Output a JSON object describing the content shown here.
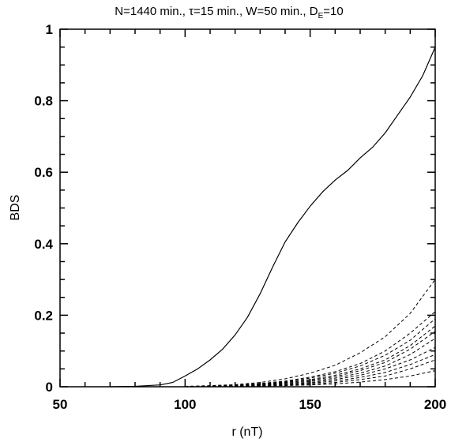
{
  "chart_data": {
    "type": "line",
    "title": "N=1440 min., τ=15 min., W=50 min., D",
    "title_subscript": "E",
    "title_suffix": "=10",
    "xlabel": "r (nT)",
    "ylabel": "BDS",
    "xlim": [
      50,
      200
    ],
    "ylim": [
      0,
      1
    ],
    "x_ticks": [
      50,
      100,
      150,
      200
    ],
    "x_tick_labels": [
      "50",
      "100",
      "150",
      "200"
    ],
    "y_ticks": [
      0,
      0.2,
      0.4,
      0.6,
      0.8,
      1
    ],
    "y_tick_labels": [
      "0",
      "0.2",
      "0.4",
      "0.6",
      "0.8",
      "1"
    ],
    "grid": false,
    "legend": "none",
    "series": [
      {
        "style": "solid",
        "x": [
          70,
          80,
          90,
          95,
          100,
          105,
          110,
          115,
          120,
          125,
          130,
          135,
          140,
          145,
          150,
          155,
          160,
          165,
          170,
          175,
          180,
          185,
          190,
          195,
          200
        ],
        "y": [
          0,
          0.001,
          0.005,
          0.012,
          0.03,
          0.05,
          0.075,
          0.105,
          0.145,
          0.195,
          0.26,
          0.335,
          0.405,
          0.458,
          0.505,
          0.545,
          0.578,
          0.605,
          0.64,
          0.67,
          0.71,
          0.76,
          0.81,
          0.87,
          0.95
        ]
      },
      {
        "style": "dashed",
        "x": [
          100,
          110,
          120,
          130,
          140,
          150,
          160,
          170,
          180,
          190,
          200
        ],
        "y": [
          0.001,
          0.003,
          0.006,
          0.012,
          0.022,
          0.038,
          0.06,
          0.095,
          0.14,
          0.205,
          0.3
        ]
      },
      {
        "style": "dashed",
        "x": [
          100,
          110,
          120,
          130,
          140,
          150,
          160,
          170,
          180,
          190,
          200
        ],
        "y": [
          0,
          0.002,
          0.004,
          0.009,
          0.016,
          0.027,
          0.042,
          0.065,
          0.1,
          0.15,
          0.21
        ]
      },
      {
        "style": "dashed",
        "x": [
          100,
          110,
          120,
          130,
          140,
          150,
          160,
          170,
          180,
          190,
          200
        ],
        "y": [
          0,
          0.002,
          0.004,
          0.008,
          0.014,
          0.024,
          0.038,
          0.058,
          0.088,
          0.13,
          0.19
        ]
      },
      {
        "style": "dashed",
        "x": [
          100,
          110,
          120,
          130,
          140,
          150,
          160,
          170,
          180,
          190,
          200
        ],
        "y": [
          0,
          0.001,
          0.003,
          0.007,
          0.012,
          0.02,
          0.032,
          0.05,
          0.075,
          0.115,
          0.17
        ]
      },
      {
        "style": "dashed",
        "x": [
          100,
          110,
          120,
          130,
          140,
          150,
          160,
          170,
          180,
          190,
          200
        ],
        "y": [
          0,
          0.001,
          0.003,
          0.006,
          0.011,
          0.018,
          0.028,
          0.045,
          0.068,
          0.105,
          0.155
        ]
      },
      {
        "style": "dashed",
        "x": [
          100,
          110,
          120,
          130,
          140,
          150,
          160,
          170,
          180,
          190,
          200
        ],
        "y": [
          0,
          0.001,
          0.002,
          0.005,
          0.009,
          0.015,
          0.024,
          0.038,
          0.058,
          0.09,
          0.135
        ]
      },
      {
        "style": "dashed",
        "x": [
          100,
          110,
          120,
          130,
          140,
          150,
          160,
          170,
          180,
          190,
          200
        ],
        "y": [
          0,
          0.001,
          0.002,
          0.004,
          0.007,
          0.012,
          0.02,
          0.032,
          0.05,
          0.075,
          0.11
        ]
      },
      {
        "style": "dashed",
        "x": [
          100,
          110,
          120,
          130,
          140,
          150,
          160,
          170,
          180,
          190,
          200
        ],
        "y": [
          0,
          0.001,
          0.002,
          0.003,
          0.006,
          0.01,
          0.016,
          0.026,
          0.04,
          0.062,
          0.09
        ]
      },
      {
        "style": "dashed",
        "x": [
          100,
          110,
          120,
          130,
          140,
          150,
          160,
          170,
          180,
          190,
          200
        ],
        "y": [
          0,
          0,
          0.001,
          0.002,
          0.004,
          0.007,
          0.012,
          0.02,
          0.03,
          0.05,
          0.075
        ]
      },
      {
        "style": "dashed",
        "x": [
          100,
          110,
          120,
          130,
          140,
          150,
          160,
          170,
          180,
          190,
          200
        ],
        "y": [
          0,
          0,
          0.001,
          0.002,
          0.003,
          0.005,
          0.008,
          0.013,
          0.02,
          0.03,
          0.045
        ]
      }
    ]
  }
}
